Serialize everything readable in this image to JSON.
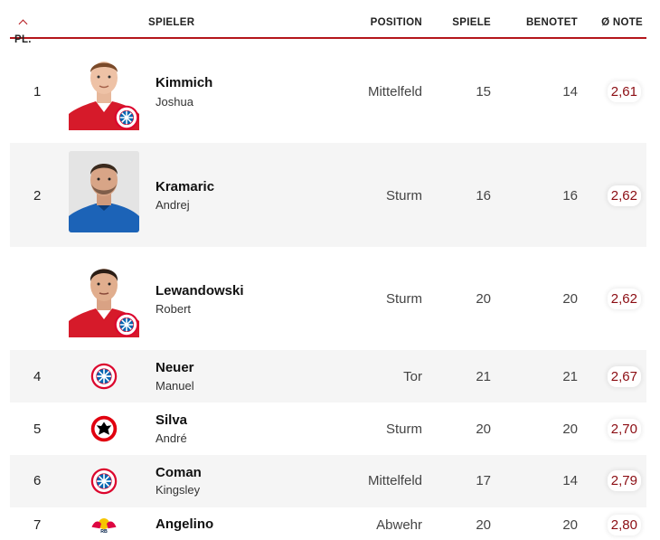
{
  "columns": {
    "rank": "PL.",
    "player": "SPIELER",
    "position": "POSITION",
    "games": "SPIELE",
    "rated": "BENOTET",
    "note": "Ø NOTE"
  },
  "rows": [
    {
      "rank": "1",
      "last": "Kimmich",
      "first": "Joshua",
      "position": "Mittelfeld",
      "games": "15",
      "rated": "14",
      "note": "2,61",
      "club": "bayern-munich"
    },
    {
      "rank": "2",
      "last": "Kramaric",
      "first": "Andrej",
      "position": "Sturm",
      "games": "16",
      "rated": "16",
      "note": "2,62",
      "club": "hoffenheim"
    },
    {
      "rank": "",
      "last": "Lewandowski",
      "first": "Robert",
      "position": "Sturm",
      "games": "20",
      "rated": "20",
      "note": "2,62",
      "club": "bayern-munich"
    },
    {
      "rank": "4",
      "last": "Neuer",
      "first": "Manuel",
      "position": "Tor",
      "games": "21",
      "rated": "21",
      "note": "2,67",
      "club": "bayern-munich"
    },
    {
      "rank": "5",
      "last": "Silva",
      "first": "André",
      "position": "Sturm",
      "games": "20",
      "rated": "20",
      "note": "2,70",
      "club": "eintracht-frankfurt"
    },
    {
      "rank": "6",
      "last": "Coman",
      "first": "Kingsley",
      "position": "Mittelfeld",
      "games": "17",
      "rated": "14",
      "note": "2,79",
      "club": "bayern-munich"
    },
    {
      "rank": "7",
      "last": "Angelino",
      "first": "",
      "position": "Abwehr",
      "games": "20",
      "rated": "20",
      "note": "2,80",
      "club": "rb-leipzig"
    }
  ],
  "colors": {
    "accent": "#b4161b",
    "note_text": "#8b0c12",
    "row_alt": "#f5f5f5"
  }
}
